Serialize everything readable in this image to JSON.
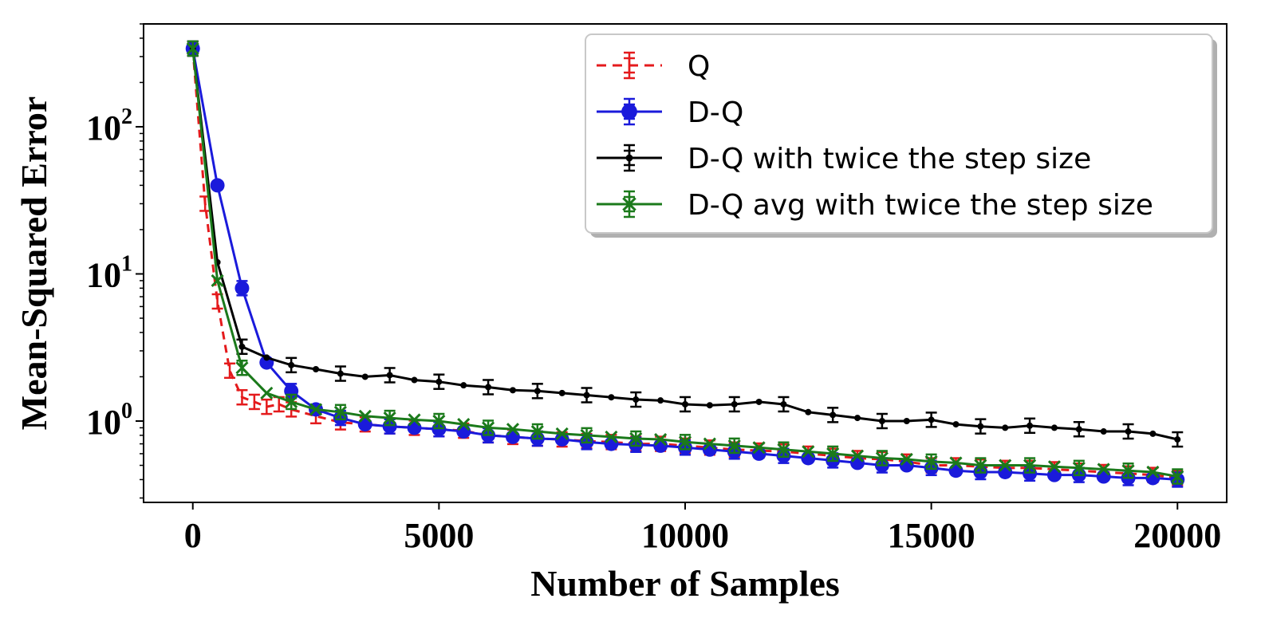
{
  "chart_data": {
    "type": "line",
    "title": "",
    "xlabel": "Number of Samples",
    "ylabel": "Mean-Squared Error",
    "yscale": "log",
    "xlim": [
      -1000,
      21000
    ],
    "ylim": [
      0.28,
      500
    ],
    "xticks": [
      {
        "value": 0,
        "label": "0"
      },
      {
        "value": 5000,
        "label": "5000"
      },
      {
        "value": 10000,
        "label": "10000"
      },
      {
        "value": 15000,
        "label": "15000"
      },
      {
        "value": 20000,
        "label": "20000"
      }
    ],
    "yticks": [
      {
        "value": 1,
        "base": "10",
        "exp": "0"
      },
      {
        "value": 10,
        "base": "10",
        "exp": "1"
      },
      {
        "value": 100,
        "base": "10",
        "exp": "2"
      }
    ],
    "grid": false,
    "legend_position": "top-right",
    "series": [
      {
        "name": "Q",
        "color": "#e41a1c",
        "linestyle": "dashed",
        "marker": "errorbar",
        "x": [
          0,
          250,
          500,
          750,
          1000,
          1250,
          1500,
          1750,
          2000,
          2500,
          3000,
          3500,
          4000,
          4500,
          5000,
          5500,
          6000,
          6500,
          7000,
          7500,
          8000,
          8500,
          9000,
          9500,
          10000,
          10500,
          11000,
          11500,
          12000,
          12500,
          13000,
          13500,
          14000,
          14500,
          15000,
          15500,
          16000,
          16500,
          17000,
          17500,
          18000,
          18500,
          19000,
          19500,
          20000
        ],
        "y": [
          340,
          30,
          6.5,
          2.2,
          1.45,
          1.35,
          1.25,
          1.3,
          1.2,
          1.08,
          0.98,
          0.95,
          0.92,
          0.9,
          0.88,
          0.86,
          0.8,
          0.78,
          0.76,
          0.75,
          0.73,
          0.72,
          0.7,
          0.7,
          0.68,
          0.66,
          0.64,
          0.63,
          0.62,
          0.6,
          0.58,
          0.56,
          0.55,
          0.53,
          0.5,
          0.5,
          0.49,
          0.48,
          0.48,
          0.47,
          0.46,
          0.45,
          0.44,
          0.43,
          0.41
        ]
      },
      {
        "name": "D-Q",
        "color": "#1a1adb",
        "linestyle": "solid",
        "marker": "circle",
        "x": [
          0,
          500,
          1000,
          1500,
          2000,
          2500,
          3000,
          3500,
          4000,
          4500,
          5000,
          5500,
          6000,
          6500,
          7000,
          7500,
          8000,
          8500,
          9000,
          9500,
          10000,
          10500,
          11000,
          11500,
          12000,
          12500,
          13000,
          13500,
          14000,
          14500,
          15000,
          15500,
          16000,
          16500,
          17000,
          17500,
          18000,
          18500,
          19000,
          19500,
          20000
        ],
        "y": [
          340,
          40,
          8,
          2.5,
          1.6,
          1.2,
          1.05,
          0.95,
          0.92,
          0.9,
          0.88,
          0.85,
          0.8,
          0.78,
          0.76,
          0.75,
          0.72,
          0.7,
          0.69,
          0.68,
          0.66,
          0.64,
          0.62,
          0.6,
          0.58,
          0.56,
          0.54,
          0.52,
          0.5,
          0.5,
          0.48,
          0.46,
          0.45,
          0.45,
          0.44,
          0.43,
          0.43,
          0.42,
          0.41,
          0.41,
          0.4
        ]
      },
      {
        "name": "D-Q with twice the step size",
        "color": "#000000",
        "linestyle": "solid",
        "marker": "dot",
        "x": [
          0,
          500,
          1000,
          1500,
          2000,
          2500,
          3000,
          3500,
          4000,
          4500,
          5000,
          5500,
          6000,
          6500,
          7000,
          7500,
          8000,
          8500,
          9000,
          9500,
          10000,
          10500,
          11000,
          11500,
          12000,
          12500,
          13000,
          13500,
          14000,
          14500,
          15000,
          15500,
          16000,
          16500,
          17000,
          17500,
          18000,
          18500,
          19000,
          19500,
          20000
        ],
        "y": [
          340,
          12,
          3.2,
          2.7,
          2.4,
          2.25,
          2.1,
          2.0,
          2.05,
          1.9,
          1.85,
          1.75,
          1.7,
          1.62,
          1.6,
          1.55,
          1.5,
          1.45,
          1.4,
          1.38,
          1.3,
          1.28,
          1.3,
          1.35,
          1.3,
          1.15,
          1.1,
          1.05,
          1.0,
          1.0,
          1.02,
          0.95,
          0.92,
          0.9,
          0.93,
          0.9,
          0.88,
          0.85,
          0.85,
          0.82,
          0.75
        ]
      },
      {
        "name": "D-Q avg with twice the step size",
        "color": "#1b7a1b",
        "linestyle": "solid",
        "marker": "x",
        "x": [
          0,
          500,
          1000,
          1500,
          2000,
          2500,
          3000,
          3500,
          4000,
          4500,
          5000,
          5500,
          6000,
          6500,
          7000,
          7500,
          8000,
          8500,
          9000,
          9500,
          10000,
          10500,
          11000,
          11500,
          12000,
          12500,
          13000,
          13500,
          14000,
          14500,
          15000,
          15500,
          16000,
          16500,
          17000,
          17500,
          18000,
          18500,
          19000,
          19500,
          20000
        ],
        "y": [
          340,
          9,
          2.3,
          1.55,
          1.35,
          1.2,
          1.15,
          1.08,
          1.05,
          1.02,
          1.0,
          0.95,
          0.9,
          0.88,
          0.85,
          0.82,
          0.8,
          0.78,
          0.76,
          0.75,
          0.72,
          0.7,
          0.68,
          0.66,
          0.64,
          0.62,
          0.6,
          0.58,
          0.56,
          0.55,
          0.53,
          0.52,
          0.5,
          0.5,
          0.5,
          0.49,
          0.48,
          0.47,
          0.46,
          0.45,
          0.42
        ]
      }
    ]
  }
}
